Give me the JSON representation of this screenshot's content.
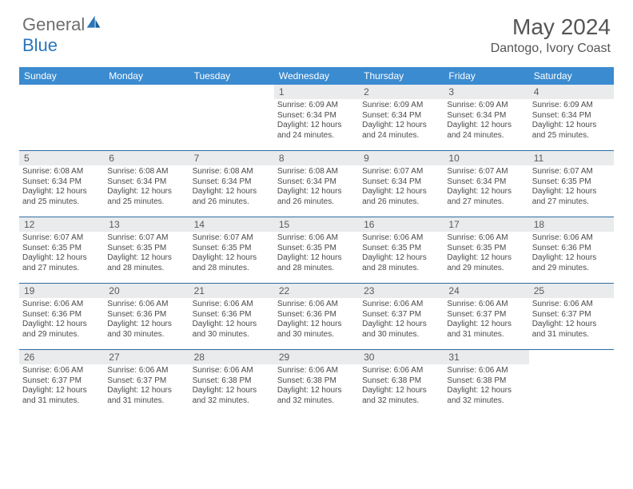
{
  "brand": {
    "general": "General",
    "blue": "Blue"
  },
  "title": "May 2024",
  "location": "Dantogo, Ivory Coast",
  "day_headers": [
    "Sunday",
    "Monday",
    "Tuesday",
    "Wednesday",
    "Thursday",
    "Friday",
    "Saturday"
  ],
  "colors": {
    "header_bg": "#3b8bd0",
    "header_text": "#ffffff",
    "daynum_bg": "#e9ebec",
    "week_divider": "#2f6da3",
    "brand_blue": "#2976bb",
    "brand_gray": "#6e6e6e"
  },
  "weeks": [
    [
      {
        "day": "",
        "lines": []
      },
      {
        "day": "",
        "lines": []
      },
      {
        "day": "",
        "lines": []
      },
      {
        "day": "1",
        "lines": [
          "Sunrise: 6:09 AM",
          "Sunset: 6:34 PM",
          "Daylight: 12 hours and 24 minutes."
        ]
      },
      {
        "day": "2",
        "lines": [
          "Sunrise: 6:09 AM",
          "Sunset: 6:34 PM",
          "Daylight: 12 hours and 24 minutes."
        ]
      },
      {
        "day": "3",
        "lines": [
          "Sunrise: 6:09 AM",
          "Sunset: 6:34 PM",
          "Daylight: 12 hours and 24 minutes."
        ]
      },
      {
        "day": "4",
        "lines": [
          "Sunrise: 6:09 AM",
          "Sunset: 6:34 PM",
          "Daylight: 12 hours and 25 minutes."
        ]
      }
    ],
    [
      {
        "day": "5",
        "lines": [
          "Sunrise: 6:08 AM",
          "Sunset: 6:34 PM",
          "Daylight: 12 hours and 25 minutes."
        ]
      },
      {
        "day": "6",
        "lines": [
          "Sunrise: 6:08 AM",
          "Sunset: 6:34 PM",
          "Daylight: 12 hours and 25 minutes."
        ]
      },
      {
        "day": "7",
        "lines": [
          "Sunrise: 6:08 AM",
          "Sunset: 6:34 PM",
          "Daylight: 12 hours and 26 minutes."
        ]
      },
      {
        "day": "8",
        "lines": [
          "Sunrise: 6:08 AM",
          "Sunset: 6:34 PM",
          "Daylight: 12 hours and 26 minutes."
        ]
      },
      {
        "day": "9",
        "lines": [
          "Sunrise: 6:07 AM",
          "Sunset: 6:34 PM",
          "Daylight: 12 hours and 26 minutes."
        ]
      },
      {
        "day": "10",
        "lines": [
          "Sunrise: 6:07 AM",
          "Sunset: 6:34 PM",
          "Daylight: 12 hours and 27 minutes."
        ]
      },
      {
        "day": "11",
        "lines": [
          "Sunrise: 6:07 AM",
          "Sunset: 6:35 PM",
          "Daylight: 12 hours and 27 minutes."
        ]
      }
    ],
    [
      {
        "day": "12",
        "lines": [
          "Sunrise: 6:07 AM",
          "Sunset: 6:35 PM",
          "Daylight: 12 hours and 27 minutes."
        ]
      },
      {
        "day": "13",
        "lines": [
          "Sunrise: 6:07 AM",
          "Sunset: 6:35 PM",
          "Daylight: 12 hours and 28 minutes."
        ]
      },
      {
        "day": "14",
        "lines": [
          "Sunrise: 6:07 AM",
          "Sunset: 6:35 PM",
          "Daylight: 12 hours and 28 minutes."
        ]
      },
      {
        "day": "15",
        "lines": [
          "Sunrise: 6:06 AM",
          "Sunset: 6:35 PM",
          "Daylight: 12 hours and 28 minutes."
        ]
      },
      {
        "day": "16",
        "lines": [
          "Sunrise: 6:06 AM",
          "Sunset: 6:35 PM",
          "Daylight: 12 hours and 28 minutes."
        ]
      },
      {
        "day": "17",
        "lines": [
          "Sunrise: 6:06 AM",
          "Sunset: 6:35 PM",
          "Daylight: 12 hours and 29 minutes."
        ]
      },
      {
        "day": "18",
        "lines": [
          "Sunrise: 6:06 AM",
          "Sunset: 6:36 PM",
          "Daylight: 12 hours and 29 minutes."
        ]
      }
    ],
    [
      {
        "day": "19",
        "lines": [
          "Sunrise: 6:06 AM",
          "Sunset: 6:36 PM",
          "Daylight: 12 hours and 29 minutes."
        ]
      },
      {
        "day": "20",
        "lines": [
          "Sunrise: 6:06 AM",
          "Sunset: 6:36 PM",
          "Daylight: 12 hours and 30 minutes."
        ]
      },
      {
        "day": "21",
        "lines": [
          "Sunrise: 6:06 AM",
          "Sunset: 6:36 PM",
          "Daylight: 12 hours and 30 minutes."
        ]
      },
      {
        "day": "22",
        "lines": [
          "Sunrise: 6:06 AM",
          "Sunset: 6:36 PM",
          "Daylight: 12 hours and 30 minutes."
        ]
      },
      {
        "day": "23",
        "lines": [
          "Sunrise: 6:06 AM",
          "Sunset: 6:37 PM",
          "Daylight: 12 hours and 30 minutes."
        ]
      },
      {
        "day": "24",
        "lines": [
          "Sunrise: 6:06 AM",
          "Sunset: 6:37 PM",
          "Daylight: 12 hours and 31 minutes."
        ]
      },
      {
        "day": "25",
        "lines": [
          "Sunrise: 6:06 AM",
          "Sunset: 6:37 PM",
          "Daylight: 12 hours and 31 minutes."
        ]
      }
    ],
    [
      {
        "day": "26",
        "lines": [
          "Sunrise: 6:06 AM",
          "Sunset: 6:37 PM",
          "Daylight: 12 hours and 31 minutes."
        ]
      },
      {
        "day": "27",
        "lines": [
          "Sunrise: 6:06 AM",
          "Sunset: 6:37 PM",
          "Daylight: 12 hours and 31 minutes."
        ]
      },
      {
        "day": "28",
        "lines": [
          "Sunrise: 6:06 AM",
          "Sunset: 6:38 PM",
          "Daylight: 12 hours and 32 minutes."
        ]
      },
      {
        "day": "29",
        "lines": [
          "Sunrise: 6:06 AM",
          "Sunset: 6:38 PM",
          "Daylight: 12 hours and 32 minutes."
        ]
      },
      {
        "day": "30",
        "lines": [
          "Sunrise: 6:06 AM",
          "Sunset: 6:38 PM",
          "Daylight: 12 hours and 32 minutes."
        ]
      },
      {
        "day": "31",
        "lines": [
          "Sunrise: 6:06 AM",
          "Sunset: 6:38 PM",
          "Daylight: 12 hours and 32 minutes."
        ]
      },
      {
        "day": "",
        "lines": []
      }
    ]
  ]
}
